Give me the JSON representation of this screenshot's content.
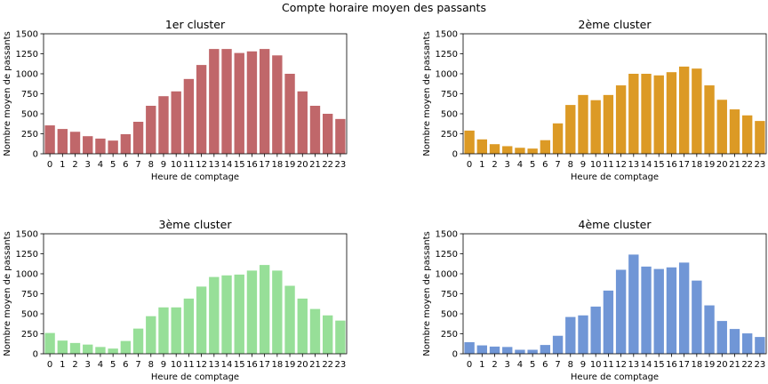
{
  "figure": {
    "suptitle": "Compte horaire moyen des passants"
  },
  "chart_data": [
    {
      "type": "bar",
      "title": "1er cluster",
      "xlabel": "Heure de comptage",
      "ylabel": "Nombre moyen de passants",
      "ylim": [
        0,
        1500
      ],
      "yticks": [
        0,
        250,
        500,
        750,
        1000,
        1250,
        1500
      ],
      "color": "#c0676a",
      "categories": [
        "0",
        "1",
        "2",
        "3",
        "4",
        "5",
        "6",
        "7",
        "8",
        "9",
        "10",
        "11",
        "12",
        "13",
        "14",
        "15",
        "16",
        "17",
        "18",
        "19",
        "20",
        "21",
        "22",
        "23"
      ],
      "values": [
        355,
        310,
        275,
        220,
        190,
        165,
        245,
        400,
        600,
        720,
        780,
        935,
        1110,
        1310,
        1310,
        1260,
        1280,
        1310,
        1230,
        1000,
        780,
        600,
        500,
        435
      ]
    },
    {
      "type": "bar",
      "title": "2ème cluster",
      "xlabel": "Heure de comptage",
      "ylabel": "Nombre moyen de passants",
      "ylim": [
        0,
        1500
      ],
      "yticks": [
        0,
        250,
        500,
        750,
        1000,
        1250,
        1500
      ],
      "color": "#dc9a25",
      "categories": [
        "0",
        "1",
        "2",
        "3",
        "4",
        "5",
        "6",
        "7",
        "8",
        "9",
        "10",
        "11",
        "12",
        "13",
        "14",
        "15",
        "16",
        "17",
        "18",
        "19",
        "20",
        "21",
        "22",
        "23"
      ],
      "values": [
        290,
        180,
        120,
        95,
        75,
        65,
        170,
        380,
        610,
        735,
        670,
        735,
        855,
        1000,
        1000,
        980,
        1020,
        1090,
        1065,
        855,
        675,
        555,
        480,
        410
      ]
    },
    {
      "type": "bar",
      "title": "3ème cluster",
      "xlabel": "Heure de comptage",
      "ylabel": "Nombre moyen de passants",
      "ylim": [
        0,
        1500
      ],
      "yticks": [
        0,
        250,
        500,
        750,
        1000,
        1250,
        1500
      ],
      "color": "#97df98",
      "categories": [
        "0",
        "1",
        "2",
        "3",
        "4",
        "5",
        "6",
        "7",
        "8",
        "9",
        "10",
        "11",
        "12",
        "13",
        "14",
        "15",
        "16",
        "17",
        "18",
        "19",
        "20",
        "21",
        "22",
        "23"
      ],
      "values": [
        260,
        165,
        135,
        115,
        85,
        65,
        160,
        315,
        470,
        580,
        580,
        690,
        840,
        960,
        980,
        990,
        1040,
        1110,
        1040,
        850,
        690,
        560,
        480,
        415
      ]
    },
    {
      "type": "bar",
      "title": "4ème cluster",
      "xlabel": "Heure de comptage",
      "ylabel": "Nombre moyen de passants",
      "ylim": [
        0,
        1500
      ],
      "yticks": [
        0,
        250,
        500,
        750,
        1000,
        1250,
        1500
      ],
      "color": "#7096d6",
      "categories": [
        "0",
        "1",
        "2",
        "3",
        "4",
        "5",
        "6",
        "7",
        "8",
        "9",
        "10",
        "11",
        "12",
        "13",
        "14",
        "15",
        "16",
        "17",
        "18",
        "19",
        "20",
        "21",
        "22",
        "23"
      ],
      "values": [
        145,
        105,
        90,
        85,
        50,
        50,
        110,
        225,
        460,
        480,
        590,
        790,
        1050,
        1240,
        1090,
        1060,
        1080,
        1140,
        915,
        605,
        410,
        310,
        255,
        210
      ]
    }
  ]
}
